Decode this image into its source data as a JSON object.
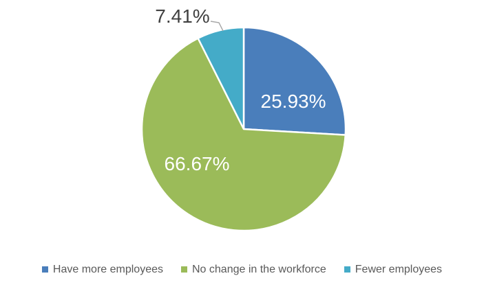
{
  "chart_data": {
    "type": "pie",
    "title": "",
    "categories": [
      "Have more employees",
      "No change in the workforce",
      "Fewer employees"
    ],
    "values": [
      25.93,
      66.67,
      7.41
    ],
    "data_labels": [
      "25.93%",
      "66.67%",
      "7.41%"
    ],
    "colors": [
      "#4A7EBB",
      "#9BBB59",
      "#44ABC8"
    ],
    "start_angle_deg": 0,
    "direction": "clockwise",
    "slice_border_color": "#FFFFFF",
    "label_color_inside": "#FFFFFF",
    "label_color_outside": "#404040",
    "leader_line_color": "#A6A6A6",
    "legend_position": "bottom"
  },
  "legend": {
    "items": [
      {
        "label": "Have more employees",
        "color": "#4A7EBB"
      },
      {
        "label": "No change in the workforce",
        "color": "#9BBB59"
      },
      {
        "label": "Fewer employees",
        "color": "#44ABC8"
      }
    ]
  }
}
